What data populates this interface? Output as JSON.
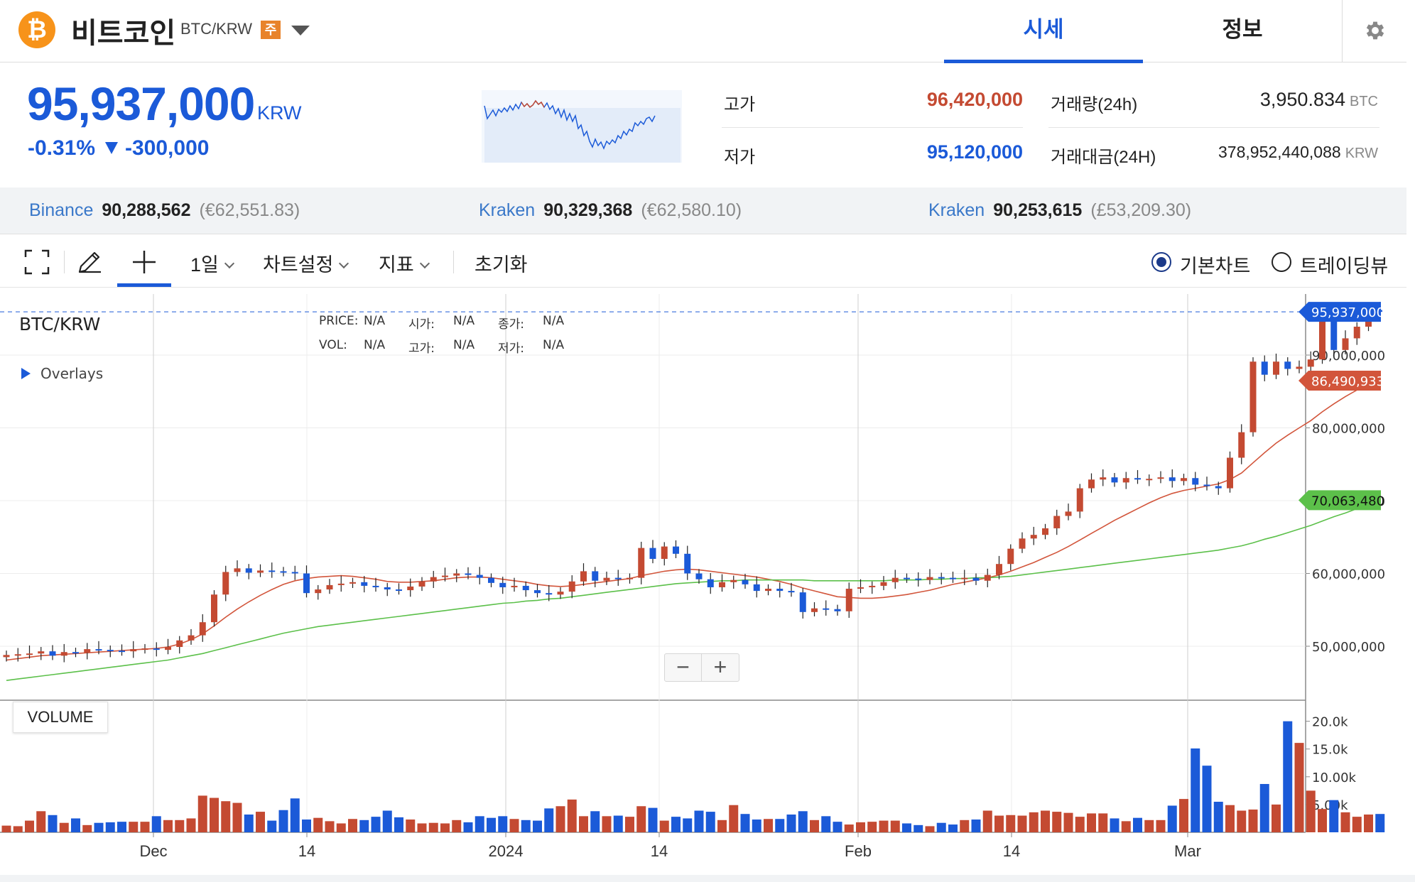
{
  "header": {
    "coin_icon": "bitcoin-icon",
    "coin_icon_glyph": "₿",
    "coin_name": "비트코인",
    "pair": "BTC/KRW",
    "badge": "주",
    "tabs": [
      {
        "label": "시세",
        "active": true
      },
      {
        "label": "정보",
        "active": false
      }
    ],
    "settings_icon": "gear-icon"
  },
  "price": {
    "current": "95,937,000",
    "unit": "KRW",
    "change_pct": "-0.31%",
    "change_abs": "-300,000",
    "direction": "down"
  },
  "stats": {
    "high_label": "고가",
    "high": "96,420,000",
    "low_label": "저가",
    "low": "95,120,000",
    "volume_label": "거래량(24h)",
    "volume": "3,950.834",
    "volume_unit": "BTC",
    "turnover_label": "거래대금(24H)",
    "turnover": "378,952,440,088",
    "turnover_unit": "KRW"
  },
  "exchanges": [
    {
      "name": "Binance",
      "price": "90,288,562",
      "fx": "(€62,551.83)"
    },
    {
      "name": "Kraken",
      "price": "90,329,368",
      "fx": "(€62,580.10)"
    },
    {
      "name": "Kraken",
      "price": "90,253,615",
      "fx": "(£53,209.30)"
    }
  ],
  "toolbar": {
    "fullscreen_icon": "fullscreen-icon",
    "draw_icon": "pencil-icon",
    "crosshair_icon": "crosshair-icon",
    "interval": "1일",
    "chart_settings": "차트설정",
    "indicators": "지표",
    "reset": "초기화",
    "view_basic": "기본차트",
    "view_tradingview": "트레이딩뷰",
    "selected_view": "basic"
  },
  "chart_overlay": {
    "symbol": "BTC/KRW",
    "overlays_label": "Overlays",
    "legend": [
      {
        "label": "PRICE:",
        "value": "N/A"
      },
      {
        "label": "시가:",
        "value": "N/A"
      },
      {
        "label": "종가:",
        "value": "N/A"
      },
      {
        "label": "VOL:",
        "value": "N/A"
      },
      {
        "label": "고가:",
        "value": "N/A"
      },
      {
        "label": "저가:",
        "value": "N/A"
      }
    ],
    "volume_label": "VOLUME",
    "zoom_out": "−",
    "zoom_in": "+"
  },
  "colors": {
    "up": "#c44a32",
    "down": "#1b5ad8",
    "ma_short": "#d2553b",
    "ma_long": "#5cc04a",
    "accent": "#1b5ad8"
  },
  "chart_data": {
    "type": "candlestick",
    "x_ticks": [
      "Dec",
      "14",
      "2024",
      "14",
      "Feb",
      "14",
      "Mar"
    ],
    "price_axis_ticks": [
      "50,000,000",
      "60,000,000",
      "70,000,000",
      "80,000,000",
      "90,000,000"
    ],
    "price_axis_ticks_values": [
      50000000,
      60000000,
      70000000,
      80000000,
      90000000
    ],
    "volume_axis_ticks": [
      "5.00k",
      "10.00k",
      "15.0k",
      "20.0k"
    ],
    "volume_axis_ticks_values": [
      5000,
      10000,
      15000,
      20000
    ],
    "ylim": [
      45000000,
      100000000
    ],
    "volume_ylim": [
      0,
      22000
    ],
    "price_tags": [
      {
        "label": "95,937,000",
        "value": 95937000,
        "color": "#1b5ad8"
      },
      {
        "label": "86,490,933",
        "value": 86490933,
        "color": "#d2553b"
      },
      {
        "label": "70,063,480",
        "value": 70063480,
        "color": "#5cc04a"
      }
    ],
    "current_price": 95937000,
    "close": [
      48800000,
      48900000,
      49000000,
      49300000,
      48700000,
      49200000,
      49100000,
      49600000,
      49500000,
      49400000,
      49300000,
      49600000,
      49700000,
      49500000,
      49900000,
      50800000,
      51500000,
      53300000,
      57100000,
      60200000,
      60700000,
      60100000,
      60400000,
      60300000,
      60200000,
      60000000,
      57300000,
      57800000,
      58400000,
      58600000,
      58800000,
      58300000,
      58100000,
      57800000,
      57700000,
      58200000,
      58900000,
      59500000,
      59700000,
      60000000,
      59800000,
      59400000,
      58700000,
      58100000,
      58300000,
      57700000,
      57300000,
      57100000,
      57500000,
      58900000,
      60300000,
      59000000,
      59400000,
      59200000,
      59400000,
      63500000,
      62000000,
      63700000,
      62700000,
      60000000,
      59200000,
      58100000,
      58800000,
      59100000,
      58500000,
      57600000,
      57900000,
      57600000,
      57400000,
      54700000,
      55200000,
      55100000,
      54800000,
      57900000,
      58100000,
      58300000,
      58800000,
      59400000,
      59300000,
      59100000,
      59500000,
      59400000,
      59300000,
      59400000,
      59000000,
      59800000,
      61300000,
      63400000,
      64800000,
      65300000,
      66200000,
      67900000,
      68500000,
      71700000,
      72900000,
      73200000,
      72500000,
      73100000,
      72900000,
      73000000,
      73200000,
      72700000,
      73100000,
      72200000,
      72000000,
      71700000,
      75900000,
      79400000,
      89100000,
      87300000,
      89100000,
      88100000,
      88400000,
      89400000,
      95500000,
      90700000,
      92300000,
      93900000,
      96200000,
      95937000
    ],
    "series": [
      {
        "name": "MA short",
        "color": "#d2553b",
        "values": [
          48100000,
          48300000,
          48500000,
          48700000,
          48800000,
          48900000,
          49000000,
          49100000,
          49200000,
          49300000,
          49400000,
          49500000,
          49600000,
          49700000,
          49900000,
          50300000,
          50900000,
          51700000,
          52800000,
          54000000,
          55100000,
          56100000,
          57000000,
          57800000,
          58500000,
          59000000,
          59300000,
          59500000,
          59600000,
          59700000,
          59600000,
          59400000,
          59200000,
          58900000,
          58800000,
          58800000,
          58900000,
          59000000,
          59200000,
          59400000,
          59500000,
          59500000,
          59400000,
          59200000,
          59000000,
          58800000,
          58500000,
          58300000,
          58200000,
          58300000,
          58500000,
          58700000,
          58900000,
          59100000,
          59300000,
          59700000,
          60000000,
          60300000,
          60500000,
          60600000,
          60500000,
          60300000,
          60100000,
          59900000,
          59700000,
          59500000,
          59200000,
          58900000,
          58500000,
          58000000,
          57600000,
          57200000,
          56800000,
          56700000,
          56600000,
          56600000,
          56700000,
          56900000,
          57100000,
          57400000,
          57700000,
          58100000,
          58500000,
          58800000,
          59100000,
          59400000,
          59800000,
          60300000,
          60900000,
          61500000,
          62200000,
          62900000,
          63700000,
          64600000,
          65500000,
          66400000,
          67300000,
          68100000,
          68900000,
          69700000,
          70400000,
          71000000,
          71400000,
          71700000,
          72000000,
          72300000,
          72900000,
          73800000,
          75200000,
          76600000,
          77900000,
          79000000,
          80000000,
          81000000,
          82200000,
          83300000,
          84300000,
          85200000,
          86000000,
          86490933
        ]
      },
      {
        "name": "MA long",
        "color": "#5cc04a",
        "values": [
          45300000,
          45500000,
          45700000,
          45900000,
          46100000,
          46300000,
          46500000,
          46700000,
          46900000,
          47100000,
          47300000,
          47500000,
          47700000,
          47900000,
          48100000,
          48400000,
          48700000,
          49000000,
          49400000,
          49800000,
          50200000,
          50600000,
          51000000,
          51400000,
          51800000,
          52100000,
          52400000,
          52700000,
          52900000,
          53100000,
          53300000,
          53500000,
          53700000,
          53900000,
          54100000,
          54300000,
          54500000,
          54700000,
          54900000,
          55100000,
          55300000,
          55500000,
          55700000,
          55900000,
          56000000,
          56200000,
          56300000,
          56500000,
          56600000,
          56800000,
          57000000,
          57200000,
          57400000,
          57600000,
          57800000,
          58000000,
          58200000,
          58400000,
          58600000,
          58700000,
          58800000,
          58900000,
          59000000,
          59000000,
          59100000,
          59100000,
          59100000,
          59100000,
          59100000,
          59100000,
          59000000,
          59000000,
          59000000,
          59000000,
          59000000,
          59000000,
          59000000,
          59100000,
          59100000,
          59100000,
          59200000,
          59200000,
          59300000,
          59300000,
          59400000,
          59400000,
          59500000,
          59600000,
          59800000,
          60000000,
          60200000,
          60400000,
          60600000,
          60800000,
          61000000,
          61200000,
          61400000,
          61600000,
          61800000,
          62000000,
          62200000,
          62400000,
          62600000,
          62800000,
          63000000,
          63200000,
          63500000,
          63800000,
          64200000,
          64700000,
          65100000,
          65600000,
          66100000,
          66600000,
          67200000,
          67800000,
          68300000,
          68900000,
          69500000,
          70063480
        ]
      }
    ],
    "volume": [
      1200,
      1100,
      2100,
      3800,
      3100,
      1700,
      2500,
      1300,
      1700,
      1800,
      1900,
      1900,
      1900,
      2900,
      2200,
      2200,
      2500,
      6600,
      6200,
      5600,
      5300,
      3200,
      3700,
      2100,
      4000,
      6100,
      2300,
      2600,
      2000,
      1600,
      2400,
      2200,
      2800,
      3900,
      2700,
      2300,
      1600,
      1700,
      1600,
      2200,
      1800,
      2900,
      2600,
      2900,
      2400,
      2200,
      2100,
      4300,
      4700,
      5900,
      2900,
      3800,
      2900,
      3000,
      2800,
      4700,
      4400,
      2100,
      2800,
      2500,
      3900,
      3700,
      2200,
      4900,
      3300,
      2300,
      2400,
      2400,
      3200,
      3800,
      2200,
      2900,
      1900,
      1400,
      1800,
      1900,
      2100,
      2100,
      1600,
      1300,
      1100,
      1700,
      1400,
      2200,
      2300,
      3900,
      3000,
      3100,
      3000,
      3600,
      3900,
      3700,
      3500,
      2800,
      3400,
      3400,
      2500,
      2000,
      2600,
      2200,
      2200,
      4800,
      6000,
      15100,
      12000,
      5500,
      4900,
      3900,
      4100,
      8700,
      5000,
      20000,
      16100,
      7500,
      4200,
      5800,
      3600,
      2800,
      3200,
      3300
    ]
  }
}
